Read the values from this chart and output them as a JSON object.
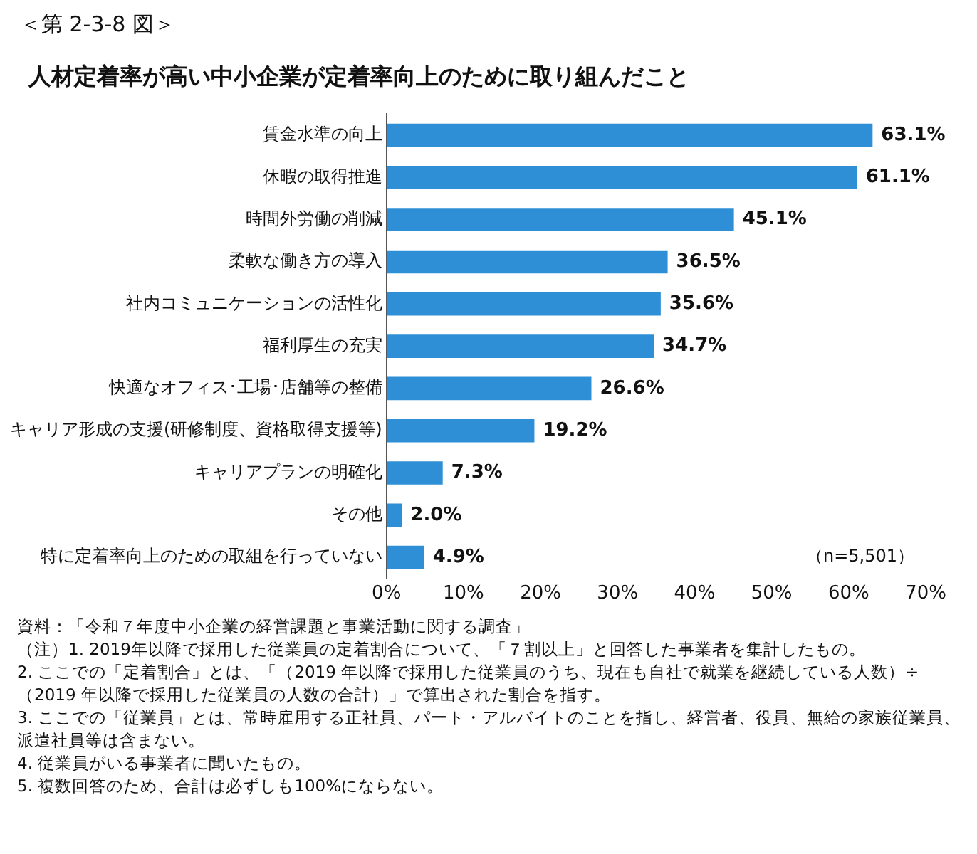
{
  "chart_data": {
    "type": "bar",
    "orientation": "horizontal",
    "subtitle": "＜第 2-3-8 図＞",
    "title": "人材定着率が高い中小企業が定着率向上のために取り組んだこと",
    "categories": [
      "賃金水準の向上",
      "休暇の取得推進",
      "時間外労働の削減",
      "柔軟な働き方の導入",
      "社内コミュニケーションの活性化",
      "福利厚生の充実",
      "快適なオフィス･工場･店舗等の整備",
      "キャリア形成の支援(研修制度、資格取得支援等)",
      "キャリアプランの明確化",
      "その他",
      "特に定着率向上のための取組を行っていない"
    ],
    "values": [
      63.1,
      61.1,
      45.1,
      36.5,
      35.6,
      34.7,
      26.6,
      19.2,
      7.3,
      2.0,
      4.9
    ],
    "value_labels": [
      "63.1%",
      "61.1%",
      "45.1%",
      "36.5%",
      "35.6%",
      "34.7%",
      "26.6%",
      "19.2%",
      "7.3%",
      "2.0%",
      "4.9%"
    ],
    "color": "#2e8fd6",
    "xlim": [
      0,
      70
    ],
    "xticks": [
      {
        "value": 0,
        "label": "0%"
      },
      {
        "value": 10,
        "label": "10%"
      },
      {
        "value": 20,
        "label": "20%"
      },
      {
        "value": 30,
        "label": "30%"
      },
      {
        "value": 40,
        "label": "40%"
      },
      {
        "value": 50,
        "label": "50%"
      },
      {
        "value": 60,
        "label": "60%"
      },
      {
        "value": 70,
        "label": "70%"
      }
    ],
    "grid": false,
    "legend": false,
    "annotations": [
      "（n=5,501）",
      "資料：「令和７年度中小企業の経営課題と事業活動に関する調査」",
      "（注）1. 2019年以降で採用した従業員の定着割合について、「７割以上」と回答した事業者を集計したもの。",
      "2. ここでの「定着割合」とは、「（2019 年以降で採用した従業員のうち、現在も自社で就業を継続している人数）÷（2019 年以降で採用した従業員の人数の合計）」で算出された割合を指す。",
      "3. ここでの「従業員」とは、常時雇用する正社員、パート・アルバイトのことを指し、経営者、役員、無給の家族従業員、派遣社員等は含まない。",
      "4. 従業員がいる事業者に聞いたもの。",
      "5. 複数回答のため、合計は必ずしも100%にならない。"
    ]
  }
}
